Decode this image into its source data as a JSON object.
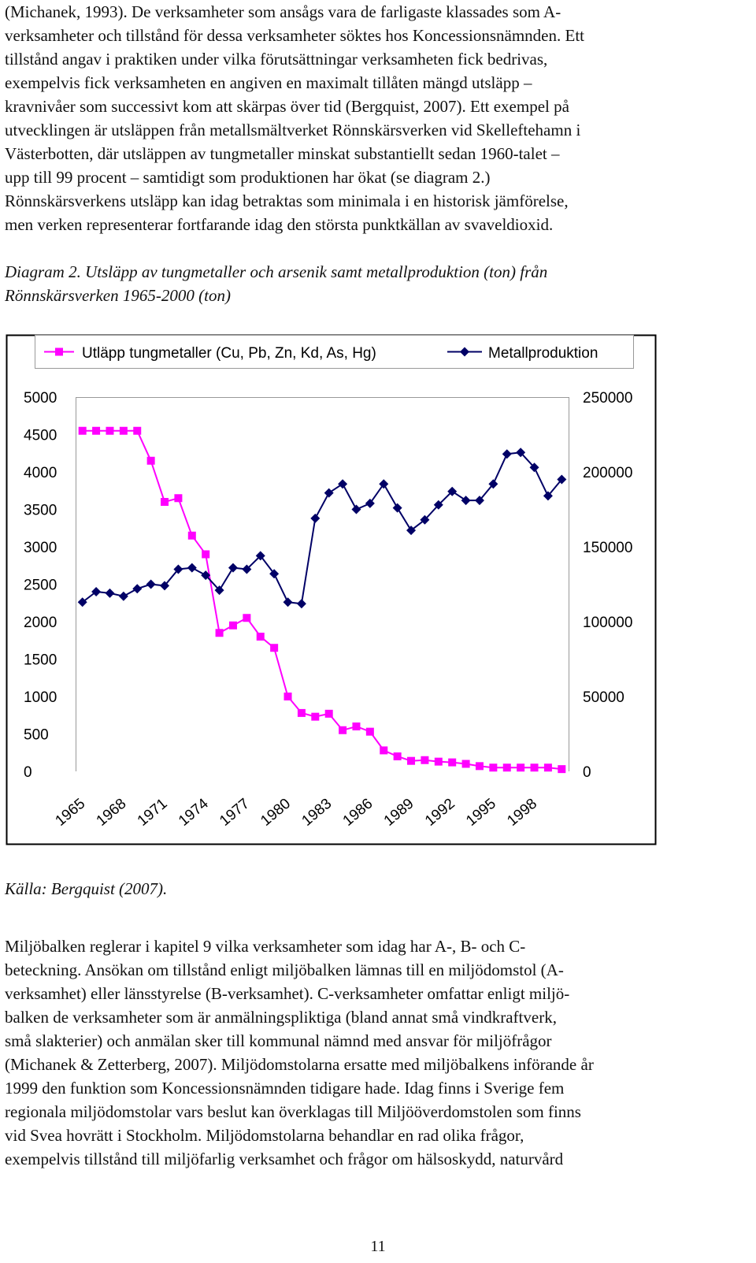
{
  "paragraph_top": {
    "lines": [
      "(Michanek, 1993). De verksamheter som ansågs vara de farligaste klassades som A-",
      "verksamheter och tillstånd för dessa verksamheter söktes hos Koncessionsnämnden. Ett",
      "tillstånd angav i praktiken under vilka förutsättningar verksamheten fick bedrivas,",
      "exempelvis fick verksamheten en angiven en maximalt tillåten mängd utsläpp –",
      "kravnivåer som successivt kom att skärpas över tid (Bergquist, 2007). Ett exempel på",
      "utvecklingen är utsläppen från metallsmältverket Rönnskärsverken vid Skelleftehamn i",
      "Västerbotten, där utsläppen av tungmetaller minskat substantiellt sedan 1960-talet –",
      "upp till 99 procent – samtidigt som produktionen har ökat (se diagram 2.)",
      "Rönnskärsverkens utsläpp kan idag betraktas som minimala i en historisk jämförelse,",
      "men verken representerar fortfarande idag den största punktkällan av svaveldioxid."
    ]
  },
  "diagram_caption": {
    "lines": [
      "Diagram 2. Utsläpp av tungmetaller och arsenik samt metallproduktion (ton) från",
      "Rönnskärsverken 1965-2000 (ton)"
    ]
  },
  "source_caption": "Källa: Bergquist (2007).",
  "paragraph_bottom": {
    "lines": [
      "Miljöbalken reglerar i kapitel 9 vilka verksamheter som idag har A-, B- och C-",
      "beteckning. Ansökan om tillstånd enligt miljöbalken lämnas till en miljödomstol (A-",
      "verksamhet) eller länsstyrelse (B-verksamhet).  C-verksamheter omfattar enligt miljö-",
      "balken de verksamheter som är anmälningspliktiga (bland annat små vindkraftverk,",
      "små slakterier) och anmälan sker till kommunal nämnd med ansvar för miljöfrågor",
      "(Michanek & Zetterberg, 2007). Miljödomstolarna ersatte med miljöbalkens införande år",
      "1999 den funktion som Koncessionsnämnden tidigare hade. Idag finns i Sverige fem",
      "regionala miljödomstolar vars beslut kan överklagas till Miljööverdomstolen som finns",
      "vid Svea hovrätt i Stockholm. Miljödomstolarna behandlar en rad olika frågor,",
      "exempelvis tillstånd till miljöfarlig verksamhet och frågor om hälsoskydd, naturvård"
    ]
  },
  "page_number": "11",
  "chart_data": {
    "type": "line",
    "title": "",
    "xlabel": "",
    "ylabel": "",
    "x": [
      1965,
      1966,
      1967,
      1968,
      1969,
      1970,
      1971,
      1972,
      1973,
      1974,
      1975,
      1976,
      1977,
      1978,
      1979,
      1980,
      1981,
      1982,
      1983,
      1984,
      1985,
      1986,
      1987,
      1988,
      1989,
      1990,
      1991,
      1992,
      1993,
      1994,
      1995,
      1996,
      1997,
      1998,
      1999,
      2000
    ],
    "x_tick_labels": [
      "1965",
      "1968",
      "1971",
      "1974",
      "1977",
      "1980",
      "1983",
      "1986",
      "1989",
      "1992",
      "1995",
      "1998"
    ],
    "y_left": {
      "ylim": [
        0,
        5000
      ],
      "ticks": [
        "0",
        "500",
        "1000",
        "1500",
        "2000",
        "2500",
        "3000",
        "3500",
        "4000",
        "4500",
        "5000"
      ]
    },
    "y_right": {
      "ylim": [
        0,
        250000
      ],
      "ticks": [
        "0",
        "50000",
        "100000",
        "150000",
        "200000",
        "250000"
      ]
    },
    "grid": false,
    "legend_placement": "top",
    "series": [
      {
        "name": "Utläpp tungmetaller (Cu, Pb, Zn, Kd, As, Hg)",
        "axis": "left",
        "color": "#ff00ff",
        "marker": "square",
        "values": [
          4550,
          4550,
          4550,
          4550,
          4550,
          4150,
          3600,
          3650,
          3150,
          2900,
          1850,
          1950,
          2050,
          1800,
          1650,
          1000,
          780,
          730,
          770,
          550,
          600,
          530,
          280,
          200,
          140,
          150,
          130,
          120,
          100,
          70,
          50,
          50,
          50,
          50,
          50,
          30
        ]
      },
      {
        "name": "Metallproduktion",
        "axis": "right",
        "color": "#000066",
        "marker": "diamond",
        "values": [
          113000,
          120000,
          119000,
          117000,
          122000,
          125000,
          124000,
          135000,
          136000,
          131000,
          121000,
          136000,
          135000,
          144000,
          132000,
          113000,
          112000,
          169000,
          186000,
          192000,
          175000,
          179000,
          192000,
          176000,
          161000,
          168000,
          178000,
          187000,
          181000,
          181000,
          192000,
          212000,
          213000,
          203000,
          184000,
          195000
        ]
      }
    ]
  }
}
